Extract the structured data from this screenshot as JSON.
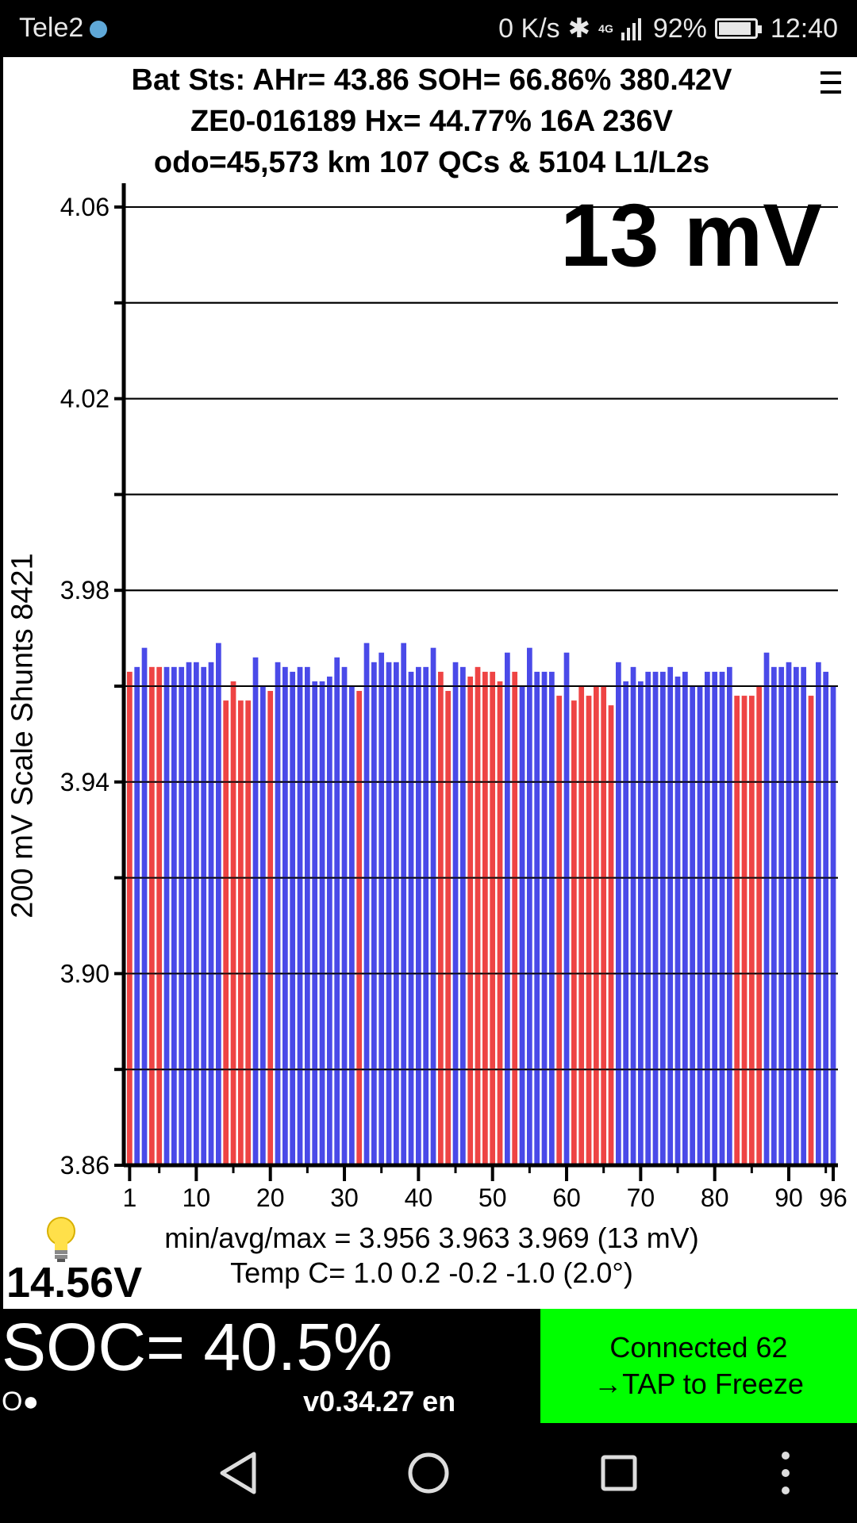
{
  "status_bar": {
    "carrier": "Tele2",
    "speed": "0 K/s",
    "network": "4G",
    "battery_pct": "92%",
    "battery_level": 0.92,
    "time": "12:40"
  },
  "header": {
    "line1": "Bat Sts: AHr= 43.86 SOH= 66.86% 380.42V",
    "line2": "ZE0-016189   Hx= 44.77% 16A 236V",
    "line3": "odo=45,573 km  107 QCs & 5104 L1/L2s"
  },
  "spread": "13 mV",
  "chart_data": {
    "type": "bar",
    "ylabel": "200 mV Scale   Shunts 8421",
    "ylim": [
      3.86,
      4.06
    ],
    "yticks": [
      "4.06",
      "4.02",
      "3.98",
      "3.94",
      "3.90",
      "3.86"
    ],
    "xticks": [
      "1",
      "10",
      "20",
      "30",
      "40",
      "50",
      "60",
      "70",
      "80",
      "90",
      "96"
    ],
    "values": [
      3.963,
      3.964,
      3.968,
      3.964,
      3.964,
      3.964,
      3.964,
      3.964,
      3.965,
      3.965,
      3.964,
      3.965,
      3.969,
      3.957,
      3.961,
      3.957,
      3.957,
      3.966,
      3.96,
      3.959,
      3.965,
      3.964,
      3.963,
      3.964,
      3.964,
      3.961,
      3.961,
      3.962,
      3.966,
      3.964,
      3.96,
      3.959,
      3.969,
      3.965,
      3.967,
      3.965,
      3.965,
      3.969,
      3.963,
      3.964,
      3.964,
      3.968,
      3.963,
      3.959,
      3.965,
      3.964,
      3.962,
      3.964,
      3.963,
      3.963,
      3.961,
      3.967,
      3.963,
      3.96,
      3.968,
      3.963,
      3.963,
      3.963,
      3.958,
      3.967,
      3.957,
      3.96,
      3.958,
      3.96,
      3.96,
      3.956,
      3.965,
      3.961,
      3.964,
      3.961,
      3.963,
      3.963,
      3.963,
      3.964,
      3.962,
      3.963,
      3.96,
      3.96,
      3.963,
      3.963,
      3.963,
      3.964,
      3.958,
      3.958,
      3.958,
      3.96,
      3.967,
      3.964,
      3.964,
      3.965,
      3.964,
      3.964,
      3.958,
      3.965,
      3.963,
      3.96
    ],
    "shunts": [
      1,
      0,
      0,
      1,
      1,
      0,
      0,
      0,
      0,
      0,
      0,
      0,
      0,
      1,
      1,
      1,
      1,
      0,
      0,
      1,
      0,
      0,
      0,
      0,
      0,
      0,
      0,
      0,
      0,
      0,
      0,
      1,
      0,
      0,
      0,
      0,
      0,
      0,
      0,
      0,
      0,
      0,
      1,
      1,
      0,
      0,
      1,
      1,
      1,
      1,
      1,
      0,
      1,
      0,
      0,
      0,
      0,
      0,
      1,
      0,
      1,
      1,
      1,
      1,
      1,
      1,
      0,
      0,
      0,
      0,
      0,
      0,
      0,
      0,
      0,
      0,
      0,
      0,
      0,
      0,
      0,
      0,
      1,
      1,
      1,
      1,
      0,
      0,
      0,
      0,
      0,
      0,
      1,
      0,
      0,
      0
    ],
    "colors": {
      "normal": "#4a4ae8",
      "shunt": "#ee4444"
    }
  },
  "aux_voltage": "14.56V",
  "stats": {
    "minavgmax": "min/avg/max = 3.956 3.963 3.969  (13 mV)",
    "temp": "Temp C= 1.0  0.2  -0.2  -1.0  (2.0°)"
  },
  "bottom": {
    "soc": "SOC= 40.5%",
    "indicator": "O●",
    "version": "v0.34.27 en",
    "connect_line1": "Connected 62",
    "connect_line2": "→TAP to Freeze"
  }
}
